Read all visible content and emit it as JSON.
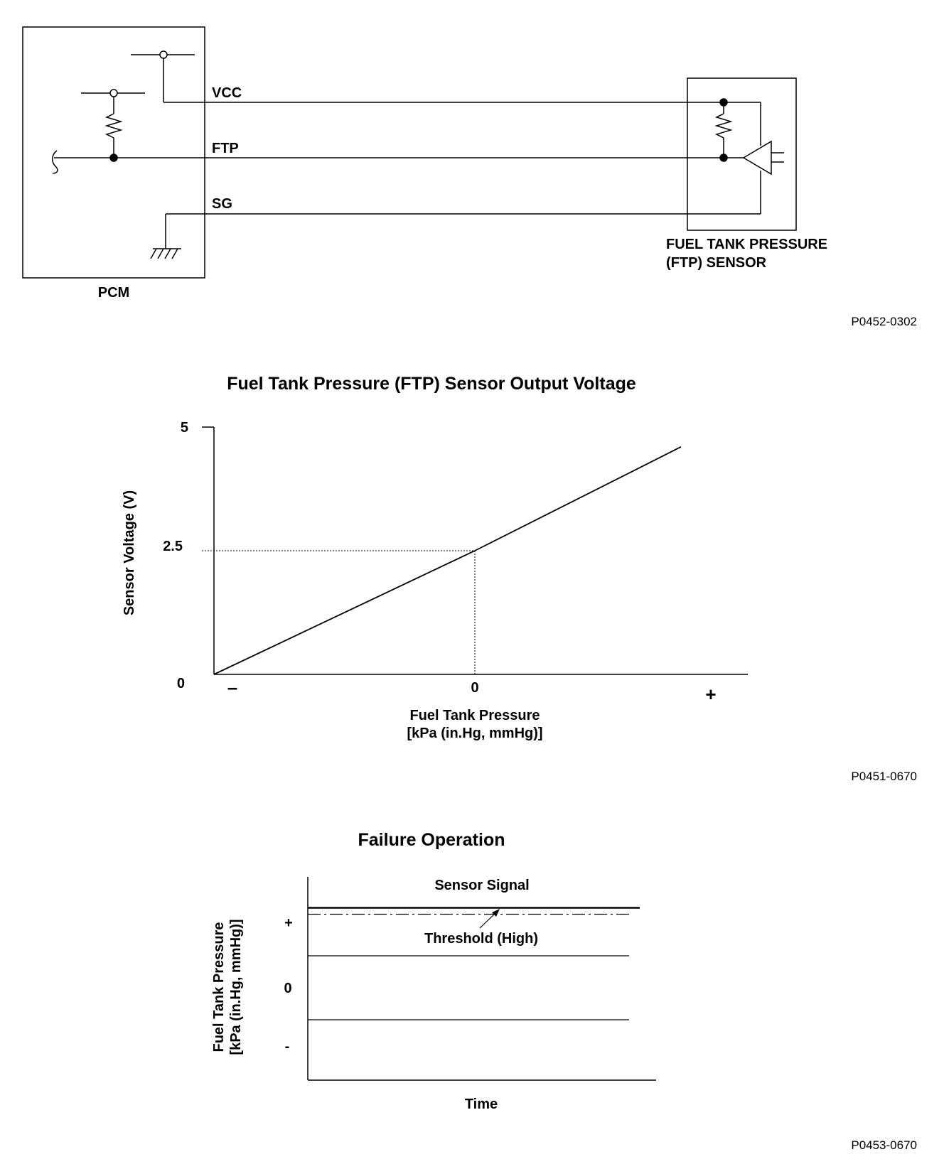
{
  "wiring_diagram": {
    "pcm_label": "PCM",
    "sensor_label_line1": "FUEL TANK PRESSURE",
    "sensor_label_line2": "(FTP) SENSOR",
    "wires": [
      "VCC",
      "FTP",
      "SG"
    ],
    "figure_code": "P0452-0302"
  },
  "output_voltage_chart": {
    "title": "Fuel Tank Pressure (FTP) Sensor Output Voltage",
    "ylabel": "Sensor Voltage (V)",
    "xlabel_line1": "Fuel Tank Pressure",
    "xlabel_line2": "[kPa (in.Hg, mmHg)]",
    "y_ticks": [
      "5",
      "2.5",
      "0"
    ],
    "x_ticks": [
      "–",
      "0",
      "+"
    ],
    "figure_code": "P0451-0670"
  },
  "failure_chart": {
    "title": "Failure Operation",
    "ylabel_line1": "Fuel Tank Pressure",
    "ylabel_line2": "[kPa (in.Hg, mmHg)]",
    "xlabel": "Time",
    "y_ticks": [
      "+",
      "0",
      "-"
    ],
    "sensor_signal_label": "Sensor Signal",
    "threshold_label": "Threshold (High)",
    "figure_code": "P0453-0670"
  },
  "chart_data": [
    {
      "type": "line",
      "title": "Fuel Tank Pressure (FTP) Sensor Output Voltage",
      "xlabel": "Fuel Tank Pressure [kPa (in.Hg, mmHg)]",
      "ylabel": "Sensor Voltage (V)",
      "x_tick_labels": [
        "–",
        "0",
        "+"
      ],
      "ylim": [
        0,
        5
      ],
      "x": [
        -1,
        0,
        0.79
      ],
      "y": [
        0,
        2.5,
        4.6
      ],
      "reference_point": {
        "x": 0,
        "y": 2.5
      }
    },
    {
      "type": "line",
      "title": "Failure Operation",
      "xlabel": "Time",
      "ylabel": "Fuel Tank Pressure [kPa (in.Hg, mmHg)]",
      "y_tick_labels": [
        "+",
        "0",
        "-"
      ],
      "series": [
        {
          "name": "Sensor Signal",
          "values": [
            1.25,
            1.25
          ]
        },
        {
          "name": "Threshold (High)",
          "values": [
            1.15,
            1.15
          ]
        }
      ],
      "reference_lines": [
        0.5,
        -0.5
      ]
    }
  ]
}
